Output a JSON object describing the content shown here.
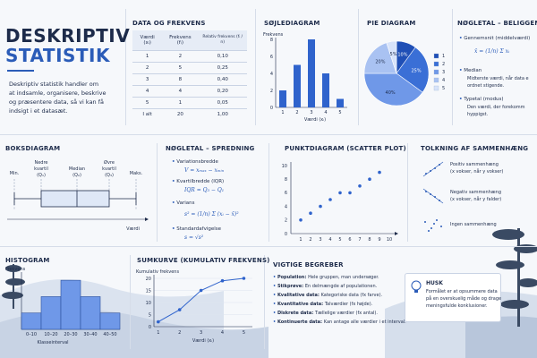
{
  "title": {
    "line1": "DESKRIPTIV",
    "line2": "STATISTIK"
  },
  "intro": [
    "Deskriptiv statistik handler om",
    "at indsamle, organisere, beskrive",
    "og præsentere data, så vi kan få",
    "indsigt i et datasæt."
  ],
  "freq_table": {
    "title": "DATA OG FREKVENS",
    "headers": [
      "Værdi (xᵢ)",
      "Frekvens (fᵢ)",
      "Relativ frekvens (fᵢ / n)"
    ],
    "rows": [
      [
        "1",
        "2",
        "0,10"
      ],
      [
        "2",
        "5",
        "0,25"
      ],
      [
        "3",
        "8",
        "0,40"
      ],
      [
        "4",
        "4",
        "0,20"
      ],
      [
        "5",
        "1",
        "0,05"
      ]
    ],
    "total": [
      "I alt",
      "20",
      "1,00"
    ]
  },
  "bar_chart": {
    "title": "SØJLEDIAGRAM",
    "ylabel": "Frekvens",
    "xlabel": "Værdi (xᵢ)"
  },
  "pie_chart": {
    "title": "PIE DIAGRAM"
  },
  "location": {
    "title": "NØGLETAL – BELIGGENH",
    "mean_label": "Gennemsnit (middelværdi)",
    "mean_formula": "x̄ = (1/n) Σ xᵢ",
    "median_label": "Median",
    "median_text": [
      "Midterste værdi, når data e",
      "ordnet stigende."
    ],
    "mode_label": "Typetal (modus)",
    "mode_text": [
      "Den værdi, der forekomm",
      "hyppigst."
    ]
  },
  "boxplot": {
    "title": "BOKSDIAGRAM",
    "min": "Min.",
    "q1": [
      "Nedre",
      "kvartil",
      "(Q₁)"
    ],
    "median": [
      "Median",
      "(Q₂)"
    ],
    "q3": [
      "Øvre",
      "kvartil",
      "(Q₃)"
    ],
    "max": "Maks.",
    "axis": "Værdi"
  },
  "spread": {
    "title": "NØGLETAL – SPREDNING",
    "range_label": "Variationsbredde",
    "range_formula": "V = xₘₐₓ − xₘᵢₙ",
    "iqr_label": "Kvartilbredde (IQR)",
    "iqr_formula": "IQR = Q₃ − Q₁",
    "var_label": "Varians",
    "var_formula": "s² = (1/n) Σ (xᵢ − x̄)²",
    "sd_label": "Standardafvigelse",
    "sd_formula": "s = √s²"
  },
  "scatter": {
    "title": "PUNKTDIAGRAM (SCATTER PLOT)"
  },
  "correlation": {
    "title": "TOLKNING AF SAMMENHÆNG",
    "positive": [
      "Positiv sammenhæng",
      "(x vokser, når y vokser)"
    ],
    "negative": [
      "Negativ sammenhæng",
      "(x vokser, når y falder)"
    ],
    "none": "Ingen sammenhæng"
  },
  "histogram": {
    "title": "HISTOGRAM",
    "ylabel": "Frekvens",
    "xlabel": "Klasseinterval"
  },
  "cumulative": {
    "title": "SUMKURVE (KUMULATIV FREKVENS)",
    "ylabel": "Kumulativ frekvens",
    "xlabel": "Værdi (xᵢ)"
  },
  "concepts": {
    "title": "VIGTIGE BEGREBER",
    "items": [
      {
        "term": "Population:",
        "text": "Hele gruppen, man undersøger."
      },
      {
        "term": "Stikprøve:",
        "text": "En delmængde af populationen."
      },
      {
        "term": "Kvalitative data:",
        "text": "Kategoriske data (fx farve)."
      },
      {
        "term": "Kvantitative data:",
        "text": "Talværdier (fx højde)."
      },
      {
        "term": "Diskrete data:",
        "text": "Tællelige værdier (fx antal)."
      },
      {
        "term": "Kontinuerte data:",
        "text": "Kan antage alle værdier i et interval."
      }
    ]
  },
  "note": {
    "title": "HUSK",
    "text": [
      "Formålet er at opsummere data",
      "på en overskuelig måde og drage",
      "meningsfulde konklusioner."
    ]
  },
  "chart_data": [
    {
      "type": "bar",
      "title": "SØJLEDIAGRAM",
      "xlabel": "Værdi (xᵢ)",
      "ylabel": "Frekvens",
      "categories": [
        "1",
        "2",
        "3",
        "4",
        "5"
      ],
      "values": [
        2,
        5,
        8,
        4,
        1
      ],
      "ylim": [
        0,
        8
      ],
      "yticks": [
        0,
        2,
        4,
        6,
        8
      ]
    },
    {
      "type": "pie",
      "title": "PIE DIAGRAM",
      "labels": [
        "1",
        "2",
        "3",
        "4",
        "5"
      ],
      "values": [
        10,
        25,
        40,
        20,
        5
      ],
      "slice_labels": [
        "10%",
        "25%",
        "40%",
        "20%",
        "5%"
      ],
      "colors": [
        "#1f4fb6",
        "#3a6fd6",
        "#6f98e8",
        "#a9c2f2",
        "#d7e3fa"
      ],
      "legend": "right"
    },
    {
      "type": "scatter",
      "title": "PUNKTDIAGRAM (SCATTER PLOT)",
      "x": [
        1,
        2,
        3,
        4,
        5,
        6,
        7,
        8,
        9
      ],
      "y": [
        2,
        3,
        4,
        5,
        6,
        6,
        7,
        8,
        9
      ],
      "xticks": [
        1,
        2,
        3,
        4,
        5,
        6,
        7,
        8,
        9,
        10
      ],
      "yticks": [
        0,
        2,
        4,
        6,
        8,
        10
      ],
      "xlim": [
        0,
        10
      ],
      "ylim": [
        0,
        10
      ]
    },
    {
      "type": "bar",
      "title": "HISTOGRAM",
      "xlabel": "Klasseinterval",
      "ylabel": "Frekvens",
      "categories": [
        "0–10",
        "10–20",
        "20–30",
        "30–40",
        "40–50"
      ],
      "values": [
        2,
        4,
        6,
        4,
        2
      ],
      "ylim": [
        0,
        7
      ]
    },
    {
      "type": "line",
      "title": "SUMKURVE (KUMULATIV FREKVENS)",
      "xlabel": "Værdi (xᵢ)",
      "ylabel": "Kumulativ frekvens",
      "x": [
        1,
        2,
        3,
        4,
        5
      ],
      "y": [
        2,
        7,
        15,
        19,
        20
      ],
      "xticks": [
        1,
        2,
        3,
        4,
        5
      ],
      "yticks": [
        0,
        5,
        10,
        15,
        20
      ],
      "ylim": [
        0,
        20
      ]
    }
  ]
}
